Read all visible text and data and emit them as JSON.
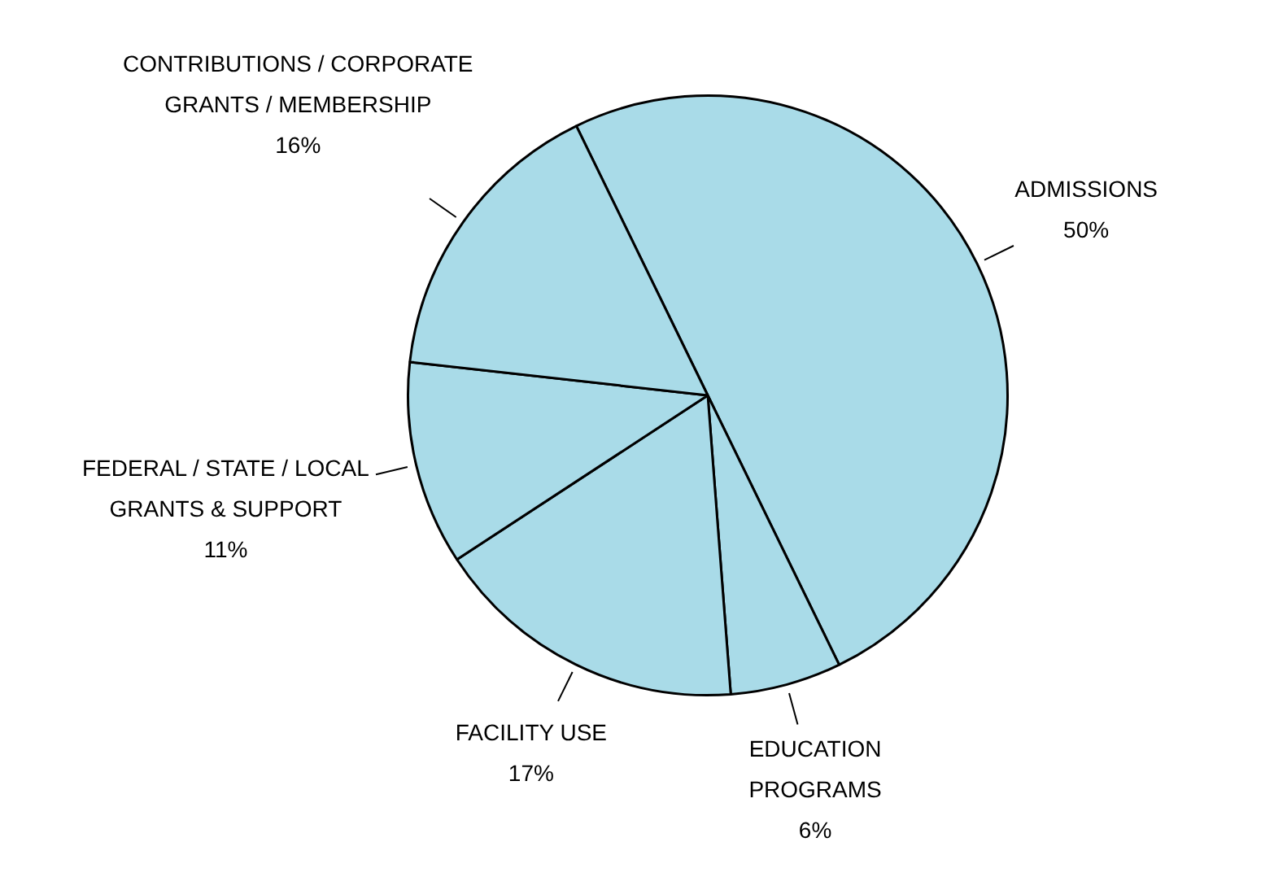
{
  "chart_data": {
    "type": "pie",
    "categories": [
      "ADMISSIONS",
      "EDUCATION\nPROGRAMS",
      "FACILITY USE",
      "FEDERAL / STATE / LOCAL\nGRANTS & SUPPORT",
      "CONTRIBUTIONS / CORPORATE\nGRANTS / MEMBERSHIP"
    ],
    "values": [
      50,
      6,
      17,
      11,
      16
    ],
    "colors": [
      "#a9dbe8",
      "#a9dbe8",
      "#a9dbe8",
      "#a9dbe8",
      "#a9dbe8"
    ],
    "value_labels": [
      "50%",
      "6%",
      "17%",
      "11%",
      "16%"
    ],
    "legend": false
  }
}
